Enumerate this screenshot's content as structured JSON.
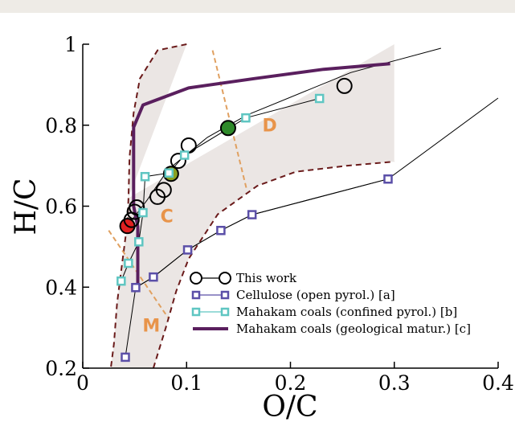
{
  "chart_data": {
    "type": "scatter",
    "xlabel": "O/C",
    "ylabel": "H/C",
    "xlim": [
      0,
      0.4
    ],
    "ylim": [
      0.2,
      1.0
    ],
    "x_ticks": [
      {
        "value": 0,
        "label": "0"
      },
      {
        "value": 0.1,
        "label": "0.1"
      },
      {
        "value": 0.2,
        "label": "0.2"
      },
      {
        "value": 0.3,
        "label": "0.3"
      },
      {
        "value": 0.4,
        "label": "0.4"
      }
    ],
    "y_ticks": [
      {
        "value": 0.2,
        "label": "0.2"
      },
      {
        "value": 0.4,
        "label": "0.4"
      },
      {
        "value": 0.6,
        "label": "0.6"
      },
      {
        "value": 0.8,
        "label": "0.8"
      },
      {
        "value": 1.0,
        "label": "1"
      }
    ],
    "grid": false,
    "legend_position": "bottom-right",
    "region_labels": [
      {
        "label": "M",
        "x": 0.066,
        "y": 0.29
      },
      {
        "label": "C",
        "x": 0.081,
        "y": 0.56
      },
      {
        "label": "D",
        "x": 0.18,
        "y": 0.785
      }
    ],
    "series": [
      {
        "name": "This work",
        "style": "circle",
        "color": "#000000",
        "x": [
          0.043,
          0.047,
          0.05,
          0.052,
          0.072,
          0.078,
          0.085,
          0.092,
          0.102,
          0.14,
          0.252
        ],
        "y": [
          0.551,
          0.566,
          0.586,
          0.597,
          0.623,
          0.64,
          0.68,
          0.712,
          0.75,
          0.793,
          0.897
        ],
        "highlights": [
          {
            "index": 0,
            "color": "#e02020"
          },
          {
            "index": 6,
            "color": "#8aa020"
          },
          {
            "index": 9,
            "color": "#2e8a2a"
          }
        ]
      },
      {
        "name": "Cellulose (open pyrol.) [a]",
        "style": "square",
        "color": "#5b4fa8",
        "x": [
          0.041,
          0.051,
          0.068,
          0.101,
          0.133,
          0.163,
          0.294
        ],
        "y": [
          0.227,
          0.399,
          0.425,
          0.492,
          0.54,
          0.579,
          0.667
        ]
      },
      {
        "name": "Mahakam coals (confined pyrol.) [b]",
        "style": "square",
        "color": "#5fc6c2",
        "x": [
          0.037,
          0.044,
          0.054,
          0.058,
          0.06,
          0.083,
          0.098,
          0.157,
          0.228
        ],
        "y": [
          0.415,
          0.459,
          0.512,
          0.584,
          0.673,
          0.682,
          0.726,
          0.818,
          0.866
        ]
      },
      {
        "name": "Mahakam coals (geological matur.) [c]",
        "style": "line",
        "color": "#5a1f5e",
        "x": [
          0.053,
          0.053,
          0.049,
          0.049,
          0.058,
          0.102,
          0.165,
          0.232,
          0.296
        ],
        "y": [
          0.4,
          0.55,
          0.6,
          0.795,
          0.85,
          0.892,
          0.915,
          0.938,
          0.952
        ]
      }
    ],
    "reference_lines": [
      {
        "x": [
          0.043,
          0.062,
          0.082,
          0.12,
          0.158,
          0.258,
          0.294
        ],
        "y": [
          0.551,
          0.615,
          0.69,
          0.77,
          0.825,
          0.93,
          0.955
        ],
        "extend_to": [
          0.345,
          0.99
        ]
      },
      {
        "x": [
          0.051,
          0.068,
          0.101,
          0.133,
          0.163,
          0.294
        ],
        "y": [
          0.399,
          0.425,
          0.492,
          0.54,
          0.579,
          0.667
        ],
        "extend_to": [
          0.4,
          0.867
        ]
      }
    ],
    "boundaries": {
      "upper_left": {
        "x": [
          0.1,
          0.072,
          0.055,
          0.049,
          0.045,
          0.044
        ],
        "y": [
          1.0,
          0.985,
          0.915,
          0.83,
          0.72,
          0.62
        ]
      },
      "left": {
        "x": [
          0.044,
          0.043,
          0.038,
          0.033,
          0.03,
          0.027
        ],
        "y": [
          0.62,
          0.56,
          0.46,
          0.36,
          0.26,
          0.2
        ]
      },
      "lower_right": {
        "x": [
          0.068,
          0.08,
          0.09,
          0.102,
          0.13,
          0.168,
          0.205,
          0.255,
          0.3
        ],
        "y": [
          0.2,
          0.3,
          0.39,
          0.47,
          0.58,
          0.65,
          0.685,
          0.7,
          0.71
        ]
      },
      "divider_CD": {
        "x": [
          0.125,
          0.158
        ],
        "y": [
          0.985,
          0.64
        ]
      },
      "divider_MC": {
        "x": [
          0.025,
          0.082
        ],
        "y": [
          0.54,
          0.325
        ]
      }
    }
  }
}
